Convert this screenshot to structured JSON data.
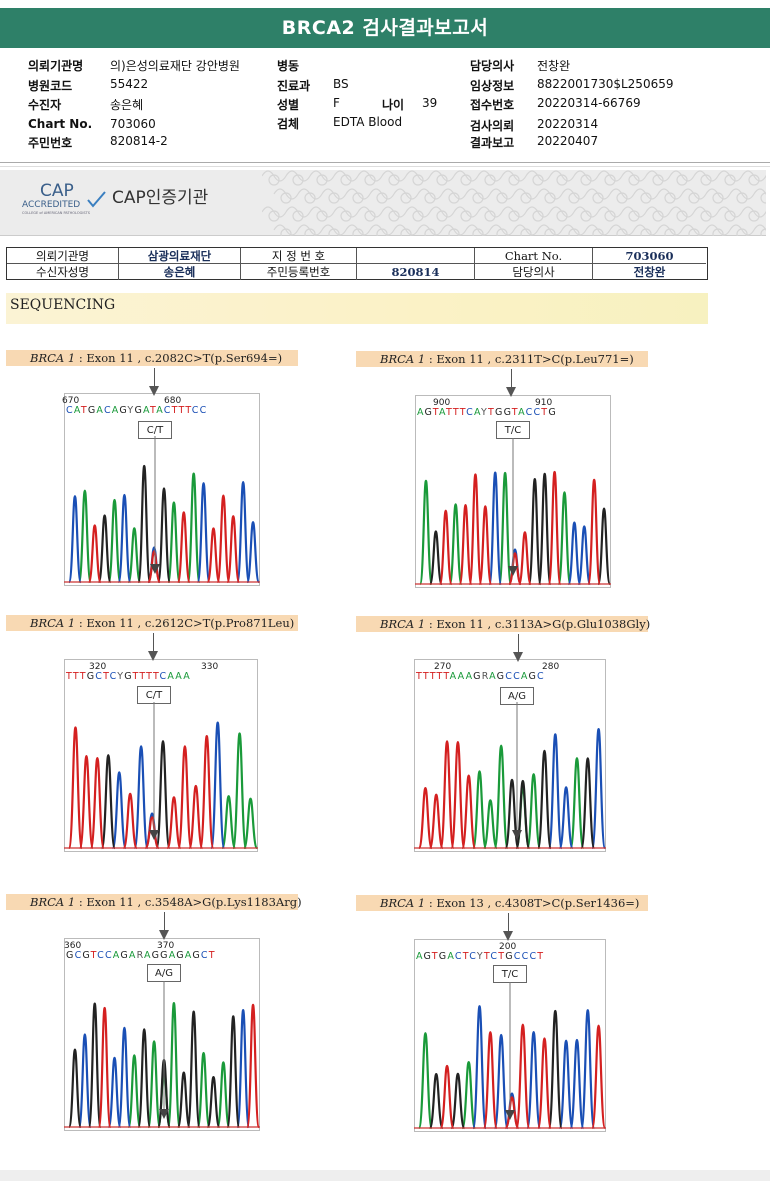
{
  "title": "BRCA2 검사결과보고서",
  "info": {
    "rows": [
      {
        "l1": "의뢰기관명",
        "v1": "의)은성의료재단 강안병원",
        "l2": "병동",
        "v2": "",
        "l3": "담당의사",
        "v3": "전창완"
      },
      {
        "l1": "병원코드",
        "v1": "55422",
        "l2": "진료과",
        "v2": "BS",
        "l3": "임상정보",
        "v3": "8822001730$L250659"
      },
      {
        "l1": "수진자",
        "v1": "송은혜",
        "l2": "성별",
        "v2": "F",
        "l2b": "나이",
        "v2b": "39",
        "l3": "접수번호",
        "v3": "20220314-66769"
      },
      {
        "l1": "Chart No.",
        "v1": "703060",
        "l2": "검체",
        "v2": "EDTA Blood",
        "l3": "검사의뢰",
        "v3": "20220314"
      },
      {
        "l1": "주민번호",
        "v1": "820814-2",
        "l2": "",
        "v2": "",
        "l3": "결과보고",
        "v3": "20220407"
      }
    ]
  },
  "cap": {
    "logo_big": "CAP",
    "logo_small": "ACCREDITED",
    "logo_tiny": "COLLEGE of AMERICAN PATHOLOGISTS",
    "text": "CAP인증기관"
  },
  "patient_table": {
    "r1": [
      "의뢰기관명",
      "삼광의료재단",
      "지 정 번 호",
      "",
      "Chart No.",
      "703060"
    ],
    "r2": [
      "수신자성명",
      "송은혜",
      "주민등록번호",
      "820814",
      "담당의사",
      "전창완"
    ]
  },
  "section": "SEQUENCING",
  "variants": [
    {
      "gene": "BRCA 1",
      "detail": " : Exon 11 , c.2082C>T(p.Ser694=)",
      "n1": "670",
      "n2": "680",
      "bases": "CATGACAGYGATACTTTCC",
      "call": "C/T"
    },
    {
      "gene": "BRCA 1",
      "detail": " : Exon 11 , c.2311T>C(p.Leu771=)",
      "n1": "900",
      "n2": "910",
      "bases": "AGTATTTCAYTGGTACCTG",
      "call": "T/C"
    },
    {
      "gene": "BRCA 1",
      "detail": " : Exon 11 , c.2612C>T(p.Pro871Leu)",
      "n1": "320",
      "n2": "330",
      "bases": "TTTGCTCYGTTTTCAAA",
      "call": "C/T"
    },
    {
      "gene": "BRCA 1",
      "detail": " : Exon 11 , c.3113A>G(p.Glu1038Gly)",
      "n1": "270",
      "n2": "280",
      "bases": "TTTTTAAAGRAGCCAGC",
      "call": "A/G"
    },
    {
      "gene": "BRCA 1",
      "detail": " : Exon 11 , c.3548A>G(p.Lys1183Arg)",
      "n1": "360",
      "n2": "370",
      "bases": "GCGTCCAGARAGGAGAGCT",
      "call": "A/G"
    },
    {
      "gene": "BRCA 1",
      "detail": " : Exon 13 , c.4308T>C(p.Ser1436=)",
      "n1": "",
      "n2": "200",
      "bases": "AGTGACTCYTCTGCCCT",
      "call": "T/C"
    }
  ],
  "colors": {
    "header": "#2e8068",
    "label_bg": "#f8d9b3",
    "A": "#1a9a3a",
    "C": "#1a4fb5",
    "G": "#222222",
    "T": "#d42020"
  }
}
